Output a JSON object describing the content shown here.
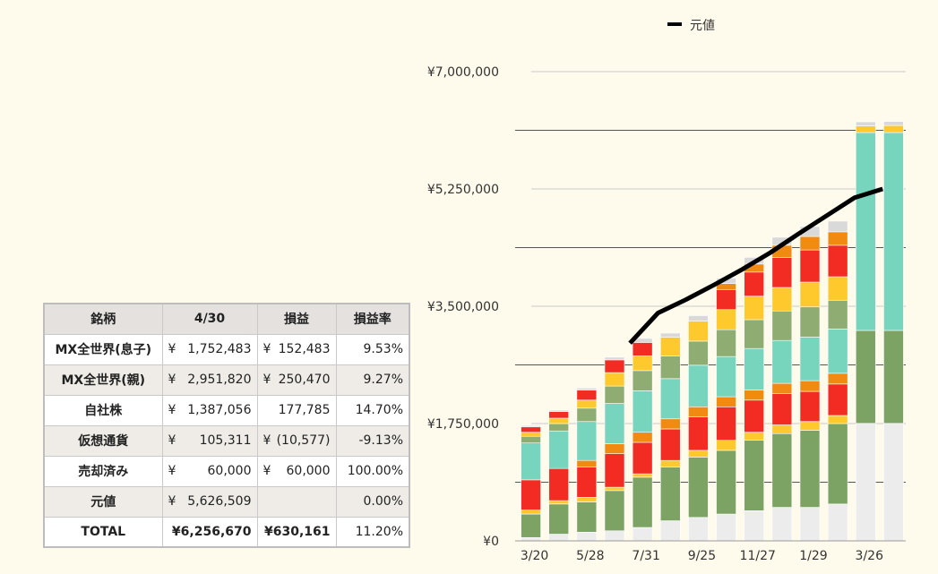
{
  "table": {
    "headers": [
      "銘柄",
      "4/30",
      "損益",
      "損益率"
    ],
    "rows": [
      {
        "name": "MX全世界(息子)",
        "val_yen": "¥",
        "val": "1,752,483",
        "gain_yen": "¥",
        "gain": "152,483",
        "rate": "9.53%"
      },
      {
        "name": "MX全世界(親)",
        "val_yen": "¥",
        "val": "2,951,820",
        "gain_yen": "¥",
        "gain": "250,470",
        "rate": "9.27%"
      },
      {
        "name": "自社株",
        "val_yen": "¥",
        "val": "1,387,056",
        "gain_yen": "",
        "gain": "177,785",
        "rate": "14.70%"
      },
      {
        "name": "仮想通貨",
        "val_yen": "¥",
        "val": "105,311",
        "gain_yen": "¥",
        "gain": "(10,577)",
        "rate": "-9.13%"
      },
      {
        "name": "売却済み",
        "val_yen": "¥",
        "val": "60,000",
        "gain_yen": "¥",
        "gain": "60,000",
        "rate": "100.00%"
      },
      {
        "name": "元値",
        "val_yen": "¥",
        "val": "5,626,509",
        "gain_yen": "",
        "gain": "",
        "rate": "0.00%"
      },
      {
        "name": "TOTAL",
        "val_yen": "",
        "val": "¥6,256,670",
        "gain_yen": "",
        "gain": "¥630,161",
        "rate": "11.20%"
      }
    ]
  },
  "chart_data": {
    "type": "bar",
    "stacked": true,
    "legend": {
      "position": "top",
      "entries": [
        "元値"
      ]
    },
    "y_ticks": [
      "¥0",
      "¥1,750,000",
      "¥3,500,000",
      "¥5,250,000",
      "¥7,000,000"
    ],
    "ylim": [
      0,
      7000000
    ],
    "x_tick_labels": [
      "3/20",
      "5/28",
      "7/31",
      "9/25",
      "11/27",
      "1/29",
      "3/26"
    ],
    "x_tick_positions": [
      0,
      2,
      4,
      6,
      8,
      10,
      12
    ],
    "colors": {
      "light": "#ececec",
      "green": "#7ca264",
      "orange": "#f08a10",
      "red": "#f22c22",
      "teal": "#77d4bd",
      "sage": "#8fad73",
      "yellow": "#fdc92d",
      "gray": "#d9d9d9",
      "line": "#000000"
    },
    "stack_order": [
      "light",
      "green",
      "yellow_low",
      "red",
      "orange",
      "teal",
      "sage",
      "yellow",
      "red_top",
      "orange_top",
      "gray"
    ],
    "series_values": [
      {
        "light": 50000,
        "green": 350000,
        "yellow_low": 60000,
        "red": 450000,
        "orange": 0,
        "teal": 550000,
        "sage": 100000,
        "yellow": 60000,
        "red_top": 80000,
        "orange_top": 0,
        "gray": 20000
      },
      {
        "light": 100000,
        "green": 450000,
        "yellow_low": 50000,
        "red": 480000,
        "orange": 0,
        "teal": 560000,
        "sage": 110000,
        "yellow": 80000,
        "red_top": 100000,
        "orange_top": 0,
        "gray": 20000
      },
      {
        "light": 130000,
        "green": 450000,
        "yellow_low": 70000,
        "red": 450000,
        "orange": 100000,
        "teal": 580000,
        "sage": 200000,
        "yellow": 120000,
        "red_top": 150000,
        "orange_top": 0,
        "gray": 30000
      },
      {
        "light": 150000,
        "green": 600000,
        "yellow_low": 50000,
        "red": 500000,
        "orange": 150000,
        "teal": 600000,
        "sage": 260000,
        "yellow": 200000,
        "red_top": 190000,
        "orange_top": 0,
        "gray": 40000
      },
      {
        "light": 200000,
        "green": 750000,
        "yellow_low": 50000,
        "red": 470000,
        "orange": 150000,
        "teal": 620000,
        "sage": 300000,
        "yellow": 220000,
        "red_top": 200000,
        "orange_top": 0,
        "gray": 60000
      },
      {
        "light": 300000,
        "green": 800000,
        "yellow_low": 100000,
        "red": 470000,
        "orange": 150000,
        "teal": 600000,
        "sage": 340000,
        "yellow": 280000,
        "red_top": 0,
        "orange_top": 0,
        "gray": 60000
      },
      {
        "light": 350000,
        "green": 900000,
        "yellow_low": 100000,
        "red": 500000,
        "orange": 150000,
        "teal": 620000,
        "sage": 360000,
        "yellow": 300000,
        "red_top": 0,
        "orange_top": 0,
        "gray": 80000
      },
      {
        "light": 400000,
        "green": 950000,
        "yellow_low": 150000,
        "red": 500000,
        "orange": 150000,
        "teal": 600000,
        "sage": 400000,
        "yellow": 300000,
        "red_top": 300000,
        "orange_top": 90000,
        "gray": 80000
      },
      {
        "light": 450000,
        "green": 1050000,
        "yellow_low": 120000,
        "red": 480000,
        "orange": 150000,
        "teal": 620000,
        "sage": 430000,
        "yellow": 350000,
        "red_top": 360000,
        "orange_top": 120000,
        "gray": 100000
      },
      {
        "light": 500000,
        "green": 1100000,
        "yellow_low": 130000,
        "red": 470000,
        "orange": 150000,
        "teal": 640000,
        "sage": 440000,
        "yellow": 350000,
        "red_top": 450000,
        "orange_top": 180000,
        "gray": 120000
      },
      {
        "light": 500000,
        "green": 1150000,
        "yellow_low": 130000,
        "red": 450000,
        "orange": 160000,
        "teal": 650000,
        "sage": 450000,
        "yellow": 370000,
        "red_top": 480000,
        "orange_top": 200000,
        "gray": 150000
      },
      {
        "light": 550000,
        "green": 1200000,
        "yellow_low": 120000,
        "red": 470000,
        "orange": 160000,
        "teal": 660000,
        "sage": 430000,
        "yellow": 350000,
        "red_top": 470000,
        "orange_top": 200000,
        "gray": 160000
      },
      {
        "light": 1752483,
        "green": 1387056,
        "yellow_low": 0,
        "red": 0,
        "orange": 0,
        "teal": 2951820,
        "sage": 0,
        "yellow": 100000,
        "red_top": 0,
        "orange_top": 0,
        "gray": 60000
      },
      {
        "light": 1752483,
        "green": 1387056,
        "yellow_low": 0,
        "red": 0,
        "orange": 0,
        "teal": 2951820,
        "sage": 0,
        "yellow": 105311,
        "red_top": 0,
        "orange_top": 0,
        "gray": 60000
      }
    ],
    "line_series": {
      "name": "元値",
      "start_index": 4,
      "values": [
        2950000,
        3400000,
        3600000,
        3820000,
        4050000,
        4300000,
        4580000,
        4850000,
        5120000,
        5250000,
        5550000,
        5580000
      ]
    }
  }
}
